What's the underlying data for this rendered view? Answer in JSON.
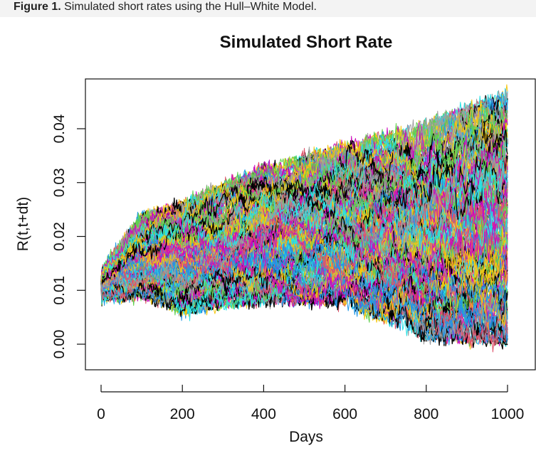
{
  "caption": {
    "prefix": "Figure 1.",
    "text": " Simulated short rates using the Hull–White Model."
  },
  "chart_data": {
    "type": "line",
    "title": "Simulated Short Rate",
    "xlabel": "Days",
    "ylabel": "R(t,t+dt)",
    "xlim": [
      0,
      1000
    ],
    "ylim": [
      0.0,
      0.045
    ],
    "x_ticks": [
      0,
      200,
      400,
      600,
      800,
      1000
    ],
    "y_ticks": [
      0.0,
      0.01,
      0.02,
      0.03,
      0.04
    ],
    "x_tick_labels": [
      "0",
      "200",
      "400",
      "600",
      "800",
      "1000"
    ],
    "y_tick_labels": [
      "0.00",
      "0.01",
      "0.02",
      "0.03",
      "0.04"
    ],
    "grid": false,
    "legend": "none",
    "series_count": 200,
    "start_value": 0.0115,
    "envelope": {
      "days": [
        0,
        100,
        200,
        400,
        600,
        800,
        1000
      ],
      "min": [
        0.0085,
        0.009,
        0.006,
        0.008,
        0.0075,
        0.001,
        0.0
      ],
      "max": [
        0.0135,
        0.024,
        0.026,
        0.033,
        0.037,
        0.041,
        0.047
      ]
    },
    "palette": [
      "#000000",
      "#DF536B",
      "#61D04F",
      "#2297E6",
      "#28E2E5",
      "#CD0BBC",
      "#F5C710",
      "#9E9E9E"
    ]
  }
}
